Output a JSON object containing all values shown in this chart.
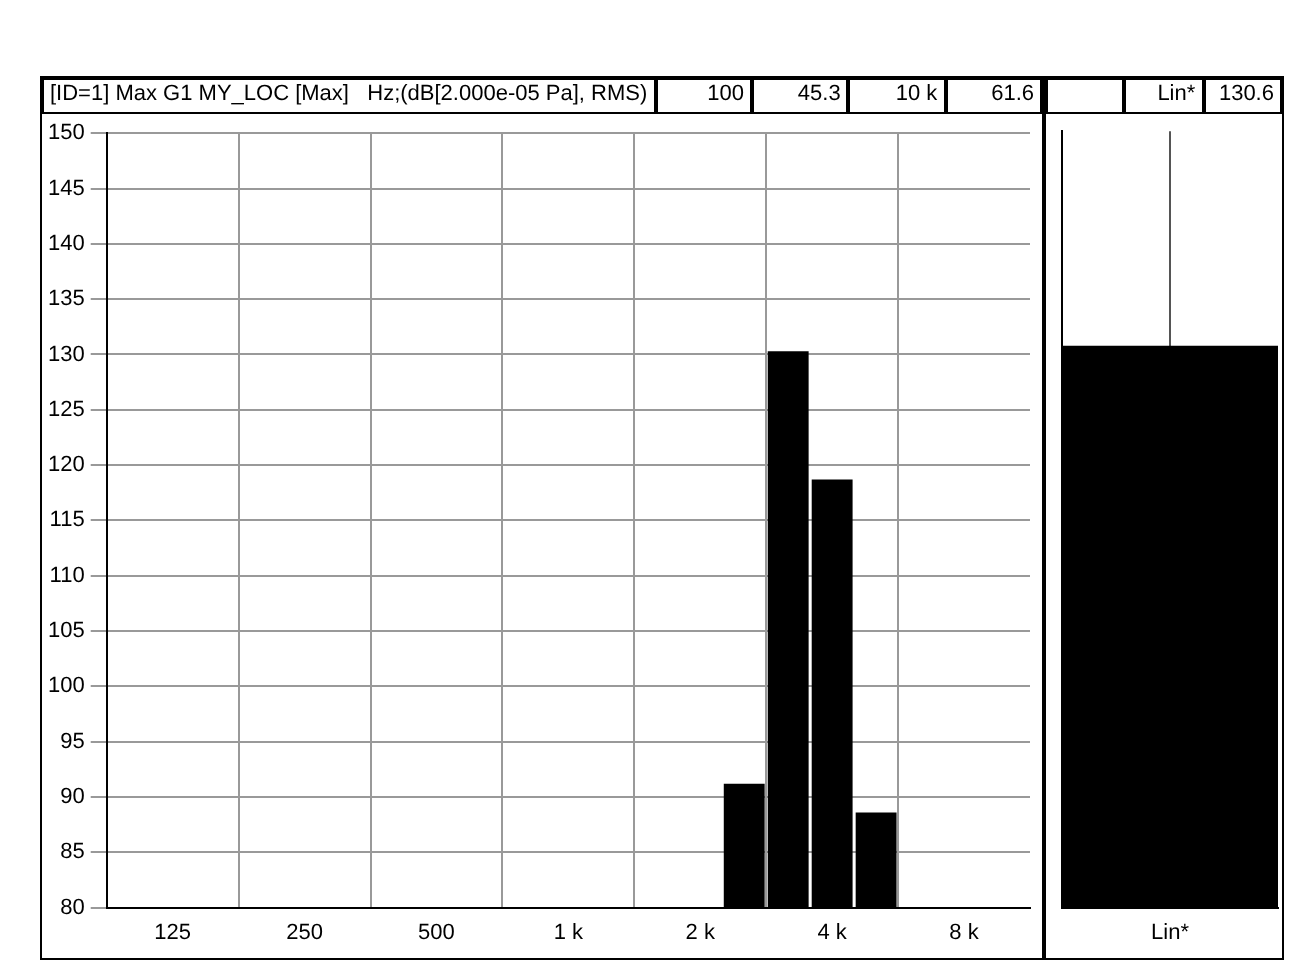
{
  "chart_data": [
    {
      "type": "bar",
      "title": "[ID=1] Max G1 MY_LOC [Max]",
      "annotations": [
        "Hz;(dB[2.000e-05 Pa], RMS)",
        "100",
        "45.3",
        "10 k",
        "61.6"
      ],
      "categories": [
        null,
        "125",
        null,
        null,
        "250",
        null,
        null,
        "500",
        null,
        null,
        "1 k",
        null,
        null,
        "2 k",
        null,
        null,
        "4 k",
        null,
        null,
        "8 k",
        null
      ],
      "values": [
        null,
        null,
        null,
        null,
        null,
        null,
        null,
        null,
        null,
        null,
        null,
        null,
        null,
        null,
        91.2,
        130.3,
        118.7,
        88.6,
        null,
        null,
        null
      ],
      "color": "#000000",
      "ylim": [
        80,
        150
      ],
      "yticks": [
        80,
        85,
        90,
        95,
        100,
        105,
        110,
        115,
        120,
        125,
        130,
        135,
        140,
        145,
        150
      ],
      "grid": true
    },
    {
      "type": "bar",
      "annotations": [
        "Lin*",
        "130.6"
      ],
      "categories": [
        "Lin*"
      ],
      "values": [
        130.6
      ],
      "color": "#000000",
      "ylim": [
        80,
        150
      ],
      "yticks": [
        80,
        85,
        90,
        95,
        100,
        105,
        110,
        115,
        120,
        125,
        130,
        135,
        140,
        145,
        150
      ],
      "grid": "x",
      "tick_labels": "x"
    }
  ]
}
